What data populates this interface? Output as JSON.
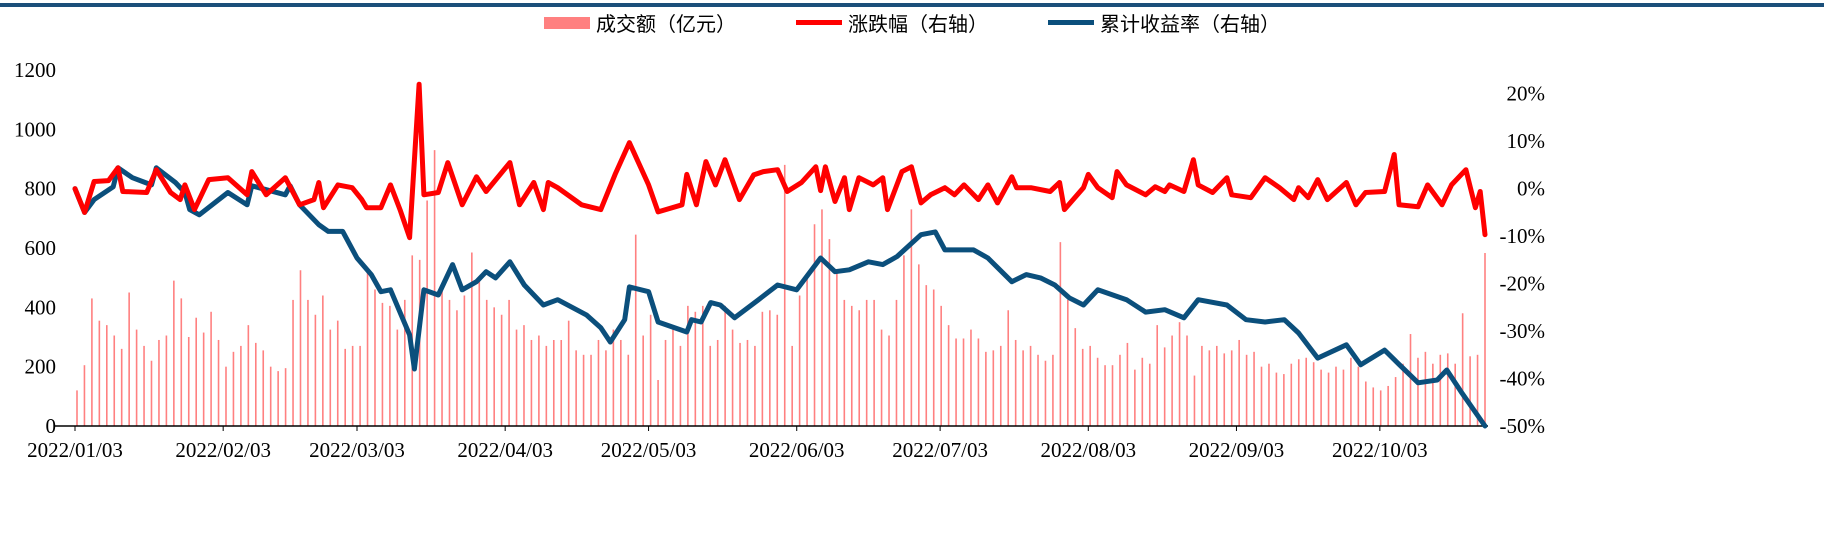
{
  "chart_data": {
    "type": "bar+line",
    "title": "",
    "legend": {
      "placement": "top-center",
      "entries": [
        "成交额（亿元）",
        "涨跌幅（右轴）",
        "累计收益率（右轴）"
      ]
    },
    "colors": {
      "volume": "#ff8080",
      "change": "#ff0000",
      "cumulative": "#0b4f7c",
      "topbar": "#1b4f7a"
    },
    "x_unit": "calendar days from 2022/01/03",
    "x_range": [
      0,
      295
    ],
    "x_ticks": [
      {
        "day": 0,
        "label": "2022/01/03"
      },
      {
        "day": 31,
        "label": "2022/02/03"
      },
      {
        "day": 59,
        "label": "2022/03/03"
      },
      {
        "day": 90,
        "label": "2022/04/03"
      },
      {
        "day": 120,
        "label": "2022/05/03"
      },
      {
        "day": 151,
        "label": "2022/06/03"
      },
      {
        "day": 181,
        "label": "2022/07/03"
      },
      {
        "day": 212,
        "label": "2022/08/03"
      },
      {
        "day": 243,
        "label": "2022/09/03"
      },
      {
        "day": 273,
        "label": "2022/10/03"
      }
    ],
    "y_left": {
      "range": [
        0,
        1200
      ],
      "ticks": [
        "0",
        "200",
        "400",
        "600",
        "800",
        "1000",
        "1200"
      ]
    },
    "y_right": {
      "range": [
        -50,
        25
      ],
      "ticks": [
        "-50%",
        "-40%",
        "-30%",
        "-20%",
        "-10%",
        "0%",
        "10%",
        "20%"
      ]
    },
    "volume": [
      120,
      205,
      430,
      355,
      340,
      305,
      260,
      450,
      325,
      270,
      220,
      290,
      305,
      490,
      430,
      300,
      365,
      315,
      385,
      290,
      200,
      250,
      270,
      340,
      280,
      255,
      200,
      185,
      195,
      425,
      525,
      425,
      375,
      440,
      325,
      355,
      260,
      270,
      270,
      530,
      460,
      415,
      405,
      325,
      425,
      575,
      560,
      760,
      930,
      475,
      425,
      390,
      440,
      585,
      490,
      425,
      400,
      375,
      425,
      325,
      340,
      290,
      305,
      270,
      290,
      290,
      355,
      255,
      240,
      240,
      290,
      255,
      325,
      290,
      240,
      645,
      305,
      375,
      155,
      290,
      325,
      270,
      405,
      385,
      405,
      270,
      290,
      405,
      325,
      280,
      290,
      270,
      385,
      390,
      375,
      880,
      270,
      440,
      510,
      680,
      730,
      630,
      525,
      425,
      405,
      390,
      425,
      425,
      325,
      305,
      425,
      575,
      730,
      545,
      475,
      460,
      405,
      340,
      295,
      295,
      325,
      295,
      250,
      255,
      270,
      390,
      290,
      255,
      270,
      240,
      220,
      240,
      620,
      425,
      330,
      260,
      270,
      230,
      205,
      205,
      240,
      280,
      190,
      230,
      210,
      340,
      265,
      305,
      350,
      305,
      170,
      270,
      255,
      270,
      245,
      255,
      290,
      240,
      250,
      200,
      210,
      180,
      175,
      210,
      225,
      230,
      215,
      190,
      180,
      200,
      190,
      230,
      200,
      150,
      130,
      120,
      135,
      165,
      210,
      310,
      230,
      250,
      210,
      240,
      245,
      210,
      380,
      235,
      240,
      583
    ],
    "change": {
      "x": [
        0,
        2,
        4,
        7,
        9,
        10,
        15,
        17,
        20,
        22,
        23,
        25,
        28,
        32,
        36,
        37,
        40,
        44,
        47,
        50,
        51,
        52,
        55,
        58,
        60,
        61,
        64,
        66,
        68,
        70,
        72,
        73,
        76,
        78,
        81,
        84,
        86,
        91,
        93,
        96,
        98,
        99,
        101,
        106,
        110,
        113,
        116,
        120,
        122,
        127,
        128,
        130,
        132,
        134,
        136,
        139,
        142,
        144,
        147,
        149,
        152,
        155,
        156,
        157,
        159,
        161,
        162,
        164,
        167,
        169,
        170,
        173,
        175,
        177,
        179,
        182,
        184,
        186,
        189,
        191,
        193,
        196,
        197,
        200,
        204,
        206,
        207,
        211,
        212,
        214,
        217,
        218,
        220,
        224,
        226,
        228,
        229,
        232,
        234,
        235,
        238,
        241,
        242,
        246,
        249,
        252,
        255,
        256,
        258,
        260,
        262,
        266,
        268,
        270,
        274,
        276,
        277,
        281,
        283,
        286,
        288,
        291,
        293,
        294,
        295
      ],
      "y": [
        0,
        -5,
        1.5,
        1.7,
        4.4,
        -0.6,
        -0.8,
        4,
        -0.8,
        -2.3,
        0.8,
        -4.4,
        1.9,
        2.3,
        -1.3,
        3.6,
        -1.3,
        2.3,
        -3.4,
        -2.3,
        1.3,
        -4,
        0.8,
        0.2,
        -2.3,
        -4,
        -4,
        0.8,
        -4.4,
        -10.3,
        22,
        -1.3,
        -0.8,
        5.5,
        -3.4,
        2.5,
        -0.6,
        5.5,
        -3.4,
        1.3,
        -4.4,
        1.3,
        0.2,
        -3.4,
        -4.4,
        3,
        9.7,
        0.8,
        -4.9,
        -3.4,
        3,
        -3.4,
        5.7,
        0.8,
        6.1,
        -2.3,
        2.9,
        3.6,
        4,
        -0.6,
        1.3,
        4.6,
        -0.4,
        4.6,
        -2.7,
        2.3,
        -4.4,
        2.3,
        0.8,
        2.3,
        -4.4,
        3.6,
        4.6,
        -3,
        -1.3,
        0.2,
        -1.3,
        0.8,
        -2.3,
        0.8,
        -3,
        2.5,
        0.2,
        0.2,
        -0.6,
        1.3,
        -4.4,
        0.2,
        3,
        0.2,
        -1.9,
        3.6,
        0.8,
        -1.3,
        0.4,
        -0.6,
        0.8,
        -0.6,
        6.1,
        0.8,
        -0.8,
        2.3,
        -1.3,
        -1.9,
        2.3,
        0.2,
        -2.3,
        0.2,
        -1.9,
        1.9,
        -2.3,
        1.3,
        -3.4,
        -0.8,
        -0.6,
        7.2,
        -3.4,
        -3.8,
        0.8,
        -3.4,
        0.8,
        4,
        -4,
        -0.6,
        -9.7
      ]
    },
    "cumulative": {
      "x": [
        0,
        2,
        4,
        8,
        9,
        12,
        16,
        17,
        21,
        23,
        24,
        26,
        32,
        36,
        37,
        44,
        45,
        47,
        51,
        53,
        56,
        59,
        62,
        64,
        66,
        70,
        71,
        73,
        76,
        79,
        81,
        84,
        86,
        88,
        91,
        94,
        98,
        101,
        107,
        110,
        112,
        115,
        116,
        120,
        122,
        128,
        129,
        131,
        133,
        135,
        138,
        143,
        147,
        151,
        156,
        159,
        162,
        166,
        169,
        172,
        177,
        180,
        182,
        188,
        191,
        196,
        199,
        202,
        205,
        208,
        211,
        214,
        220,
        224,
        228,
        232,
        235,
        241,
        245,
        249,
        253,
        256,
        260,
        266,
        269,
        274,
        277,
        281,
        285,
        287,
        290,
        295
      ],
      "y": [
        0,
        -5,
        -2.3,
        0.4,
        4.4,
        2.3,
        0.8,
        4.4,
        1.3,
        -0.8,
        -4.4,
        -5.5,
        -0.8,
        -3.4,
        0.6,
        -1.3,
        0.6,
        -3.4,
        -7.6,
        -9,
        -9,
        -14.6,
        -18.1,
        -21.7,
        -21.3,
        -30.8,
        -38,
        -21.3,
        -22.4,
        -16,
        -21.3,
        -19.6,
        -17.5,
        -18.8,
        -15.4,
        -20.3,
        -24.5,
        -23.4,
        -26.6,
        -29.3,
        -32.3,
        -27.6,
        -20.7,
        -21.7,
        -28.1,
        -30.2,
        -27.6,
        -28.1,
        -24,
        -24.5,
        -27.2,
        -23.4,
        -20.3,
        -21.3,
        -14.6,
        -17.5,
        -17.1,
        -15.4,
        -16,
        -14.3,
        -9.7,
        -9.1,
        -12.9,
        -12.9,
        -14.6,
        -19.6,
        -18.1,
        -18.8,
        -20.3,
        -23,
        -24.5,
        -21.3,
        -23.4,
        -26,
        -25.5,
        -27.2,
        -23.4,
        -24.5,
        -27.6,
        -28.1,
        -27.6,
        -30.4,
        -35.7,
        -32.9,
        -37.1,
        -34,
        -37,
        -40.9,
        -40.3,
        -38.2,
        -42.8,
        -50
      ]
    }
  }
}
